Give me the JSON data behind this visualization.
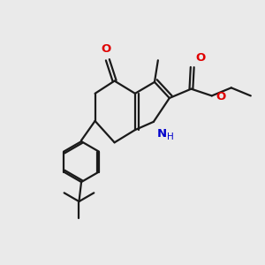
{
  "bg_color": "#eaeaea",
  "bond_color": "#1a1a1a",
  "bond_lw": 1.6,
  "double_sep": 0.08,
  "atom_colors": {
    "O": "#e00000",
    "N": "#0000cc",
    "C": "#1a1a1a"
  },
  "figsize": [
    3.0,
    3.0
  ],
  "dpi": 100,
  "xlim": [
    0,
    10
  ],
  "ylim": [
    0,
    10
  ]
}
